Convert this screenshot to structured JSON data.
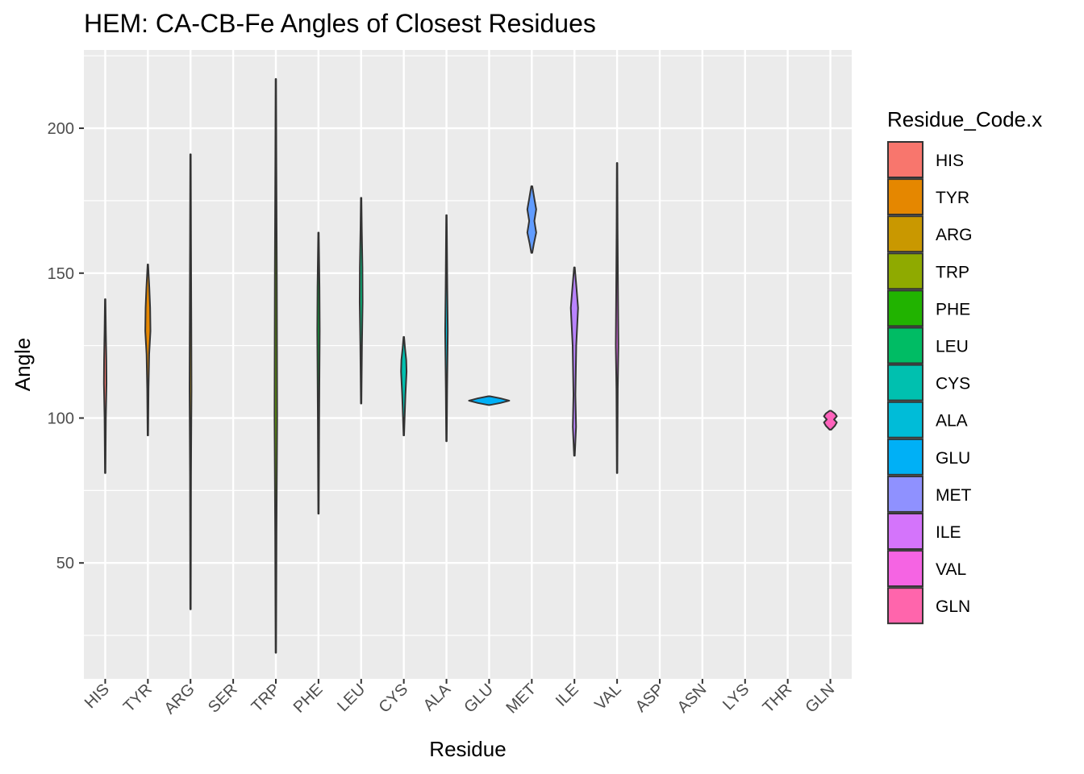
{
  "chart_data": {
    "type": "violin",
    "title": "HEM: CA-CB-Fe Angles of Closest Residues",
    "xlabel": "Residue",
    "ylabel": "Angle",
    "ylim": [
      10,
      227
    ],
    "yticks": [
      50,
      100,
      150,
      200
    ],
    "grid": true,
    "legend_placement": "right",
    "legend_title": "Residue_Code.x",
    "categories": [
      "HIS",
      "TYR",
      "ARG",
      "SER",
      "TRP",
      "PHE",
      "LEU",
      "CYS",
      "ALA",
      "GLU",
      "MET",
      "ILE",
      "VAL",
      "ASP",
      "ASN",
      "LYS",
      "THR",
      "GLN"
    ],
    "violins": [
      {
        "name": "HIS",
        "color": "#F8766D",
        "min": 81,
        "max": 141,
        "profile": [
          [
            81,
            0.3
          ],
          [
            100,
            0.8
          ],
          [
            112,
            1.6
          ],
          [
            120,
            1.4
          ],
          [
            130,
            0.8
          ],
          [
            141,
            0.3
          ]
        ]
      },
      {
        "name": "TYR",
        "color": "#E58700",
        "min": 94,
        "max": 153,
        "profile": [
          [
            94,
            0.3
          ],
          [
            110,
            0.8
          ],
          [
            122,
            1.6
          ],
          [
            130,
            3.2
          ],
          [
            138,
            2.8
          ],
          [
            145,
            1.8
          ],
          [
            153,
            0.3
          ]
        ]
      },
      {
        "name": "ARG",
        "color": "#C99800",
        "min": 34,
        "max": 191,
        "profile": [
          [
            34,
            0.3
          ],
          [
            80,
            0.6
          ],
          [
            110,
            1.2
          ],
          [
            130,
            1.0
          ],
          [
            160,
            0.6
          ],
          [
            191,
            0.3
          ]
        ]
      },
      {
        "name": "SER",
        "color": "#A3A500",
        "min": null,
        "max": null,
        "profile": []
      },
      {
        "name": "TRP",
        "color": "#6BB100",
        "min": 19,
        "max": 217,
        "profile": [
          [
            19,
            0.3
          ],
          [
            60,
            0.8
          ],
          [
            100,
            1.6
          ],
          [
            150,
            1.2
          ],
          [
            190,
            0.6
          ],
          [
            217,
            0.3
          ]
        ]
      },
      {
        "name": "PHE",
        "color": "#00BA38",
        "min": 67,
        "max": 164,
        "profile": [
          [
            67,
            0.3
          ],
          [
            100,
            0.8
          ],
          [
            130,
            1.5
          ],
          [
            145,
            1.2
          ],
          [
            164,
            0.3
          ]
        ]
      },
      {
        "name": "LEU",
        "color": "#00BF7D",
        "min": 105,
        "max": 176,
        "profile": [
          [
            105,
            0.3
          ],
          [
            125,
            1.0
          ],
          [
            140,
            1.8
          ],
          [
            152,
            1.6
          ],
          [
            165,
            0.8
          ],
          [
            176,
            0.3
          ]
        ]
      },
      {
        "name": "CYS",
        "color": "#00C0AF",
        "min": 94,
        "max": 128,
        "profile": [
          [
            94,
            0.3
          ],
          [
            100,
            1.0
          ],
          [
            108,
            2.0
          ],
          [
            116,
            3.4
          ],
          [
            120,
            3.0
          ],
          [
            124,
            1.5
          ],
          [
            128,
            0.3
          ]
        ]
      },
      {
        "name": "ALA",
        "color": "#00BCD8",
        "min": 92,
        "max": 170,
        "profile": [
          [
            92,
            0.3
          ],
          [
            110,
            0.8
          ],
          [
            130,
            1.6
          ],
          [
            145,
            1.0
          ],
          [
            170,
            0.3
          ]
        ]
      },
      {
        "name": "GLU",
        "color": "#00B0F6",
        "min": 104.5,
        "max": 107.5,
        "profile": [
          [
            104.5,
            1.0
          ],
          [
            105.2,
            14
          ],
          [
            106,
            25
          ],
          [
            106.8,
            14
          ],
          [
            107.5,
            1.0
          ]
        ]
      },
      {
        "name": "MET",
        "color": "#619CFF",
        "min": 157,
        "max": 180,
        "profile": [
          [
            157,
            0.6
          ],
          [
            160,
            2.5
          ],
          [
            164,
            5.5
          ],
          [
            168,
            3.2
          ],
          [
            172,
            5.5
          ],
          [
            176,
            3.0
          ],
          [
            180,
            0.6
          ]
        ]
      },
      {
        "name": "ILE",
        "color": "#B983FF",
        "min": 87,
        "max": 152,
        "profile": [
          [
            87,
            0.4
          ],
          [
            97,
            2.0
          ],
          [
            108,
            1.2
          ],
          [
            125,
            2.2
          ],
          [
            138,
            4.5
          ],
          [
            145,
            2.5
          ],
          [
            152,
            0.4
          ]
        ]
      },
      {
        "name": "VAL",
        "color": "#E76BF3",
        "min": 81,
        "max": 188,
        "profile": [
          [
            81,
            0.3
          ],
          [
            110,
            0.8
          ],
          [
            125,
            1.6
          ],
          [
            140,
            1.2
          ],
          [
            165,
            0.6
          ],
          [
            188,
            0.3
          ]
        ]
      },
      {
        "name": "ASP",
        "color": "#FD61D1",
        "min": null,
        "max": null,
        "profile": []
      },
      {
        "name": "ASN",
        "color": "#FF67A4",
        "min": null,
        "max": null,
        "profile": []
      },
      {
        "name": "LYS",
        "color": "#FF67A4",
        "min": null,
        "max": null,
        "profile": []
      },
      {
        "name": "THR",
        "color": "#FF67A4",
        "min": null,
        "max": null,
        "profile": []
      },
      {
        "name": "GLN",
        "color": "#FF62BC",
        "min": 96,
        "max": 102.5,
        "profile": [
          [
            96,
            1.0
          ],
          [
            97.3,
            5.5
          ],
          [
            98.5,
            8.0
          ],
          [
            99.5,
            4.5
          ],
          [
            100.6,
            8.0
          ],
          [
            101.6,
            5.5
          ],
          [
            102.5,
            1.0
          ]
        ]
      }
    ],
    "legend": [
      {
        "label": "HIS",
        "color": "#F8766D"
      },
      {
        "label": "TYR",
        "color": "#E58700"
      },
      {
        "label": "ARG",
        "color": "#C99800"
      },
      {
        "label": "TRP",
        "color": "#8FAA00"
      },
      {
        "label": "PHE",
        "color": "#21B300"
      },
      {
        "label": "LEU",
        "color": "#00BC64"
      },
      {
        "label": "CYS",
        "color": "#00C0AF"
      },
      {
        "label": "ALA",
        "color": "#00BCD8"
      },
      {
        "label": "GLU",
        "color": "#00B0F6"
      },
      {
        "label": "MET",
        "color": "#8F91FF"
      },
      {
        "label": "ILE",
        "color": "#D474FB"
      },
      {
        "label": "VAL",
        "color": "#F564E3"
      },
      {
        "label": "GLN",
        "color": "#FF65AC"
      }
    ]
  }
}
